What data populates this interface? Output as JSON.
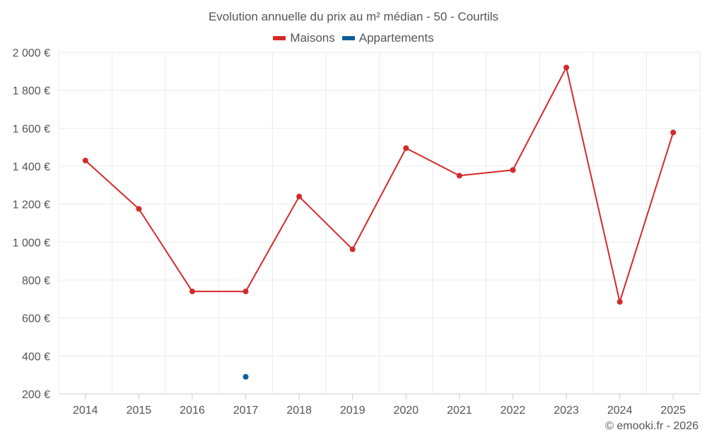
{
  "chart_data": {
    "type": "line",
    "title": "Evolution annuelle du prix au m² médian - 50 - Courtils",
    "categories": [
      "2014",
      "2015",
      "2016",
      "2017",
      "2018",
      "2019",
      "2020",
      "2021",
      "2022",
      "2023",
      "2024",
      "2025"
    ],
    "series": [
      {
        "name": "Maisons",
        "color": "#d42a2a",
        "values": [
          1430,
          1175,
          740,
          740,
          1240,
          962,
          1495,
          1350,
          1380,
          1920,
          685,
          1578
        ]
      },
      {
        "name": "Appartements",
        "color": "#0b5f9b",
        "values": [
          null,
          null,
          null,
          290,
          null,
          null,
          null,
          null,
          null,
          null,
          null,
          null
        ]
      }
    ],
    "ylim": [
      200,
      2000
    ],
    "yticks": [
      200,
      400,
      600,
      800,
      1000,
      1200,
      1400,
      1600,
      1800,
      2000
    ],
    "ytick_labels": [
      "200 €",
      "400 €",
      "600 €",
      "800 €",
      "1 000 €",
      "1 200 €",
      "1 400 €",
      "1 600 €",
      "1 800 €",
      "2 000 €"
    ],
    "xlabel": "",
    "ylabel": "",
    "grid": true,
    "legend_position": "top-center"
  },
  "legend": {
    "items": [
      {
        "label": "Maisons",
        "color": "#d42a2a"
      },
      {
        "label": "Appartements",
        "color": "#0b5f9b"
      }
    ]
  },
  "footer": {
    "credit": "© emooki.fr - 2026"
  }
}
